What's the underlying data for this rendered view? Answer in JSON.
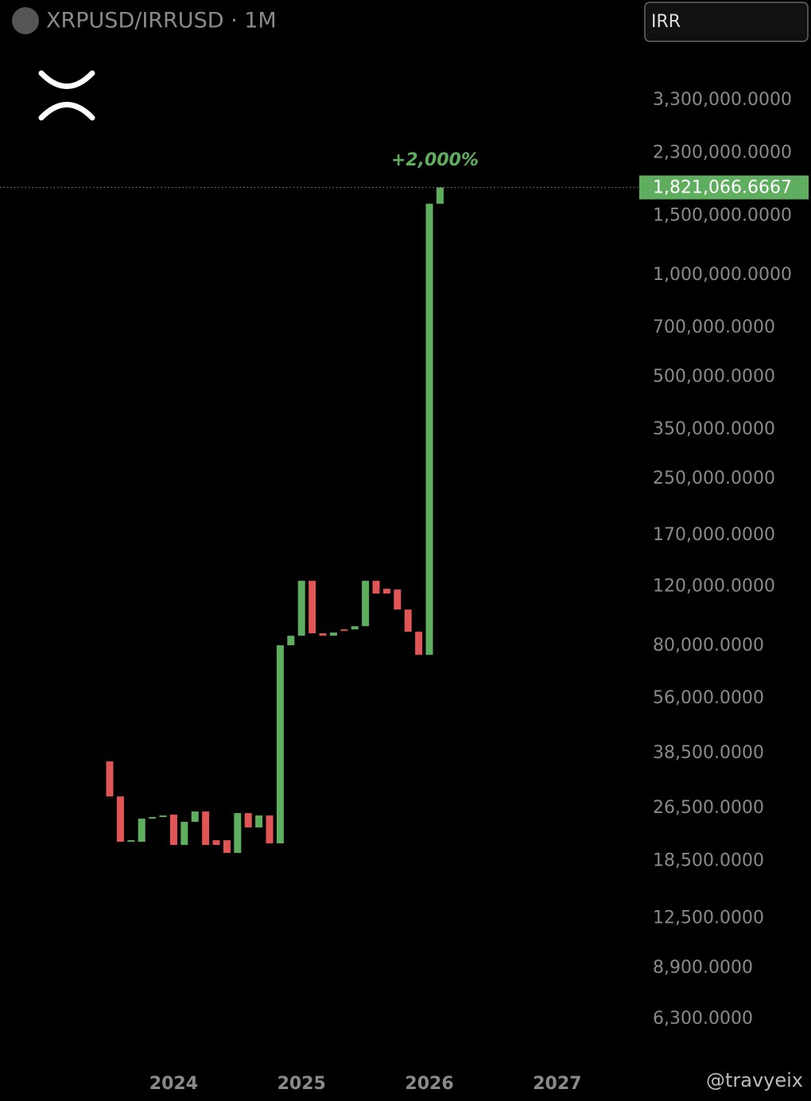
{
  "chart_data": {
    "type": "candlestick",
    "title": "XRPUSD/IRRUSD · 1M",
    "currency": "IRR",
    "annotation": "+2,000%",
    "watermark": "@travyeix",
    "log_scale": true,
    "grid": false,
    "up_color": "#5fae5f",
    "down_color": "#e05555",
    "last_value": 1821066.6667,
    "last_value_label": "1,821,066.6667",
    "open": [
      36450,
      28720,
      21080,
      21080,
      24680,
      24950,
      25360,
      20630,
      24150,
      25910,
      21310,
      21310,
      19540,
      25630,
      23240,
      25220,
      20850,
      80430,
      85830,
      124800,
      87250,
      85830,
      89630,
      89630,
      91600,
      124800,
      118200,
      117600,
      102600,
      88200,
      75350,
      1629000
    ],
    "close": [
      28720,
      21080,
      21310,
      24680,
      24950,
      25220,
      20630,
      24150,
      25910,
      20630,
      20630,
      19540,
      25630,
      23240,
      25220,
      20850,
      80430,
      85830,
      124800,
      87250,
      85830,
      87710,
      89150,
      91600,
      124800,
      114400,
      114400,
      102600,
      88200,
      75350,
      1629000,
      1821066.6667
    ],
    "xlim": [
      -10.3,
      49.4
    ],
    "xticks": [
      {
        "value": 6,
        "label": "2024"
      },
      {
        "value": 18,
        "label": "2025"
      },
      {
        "value": 30,
        "label": "2026"
      },
      {
        "value": 42,
        "label": "2027"
      }
    ],
    "ylim": [
      4830,
      4980000
    ],
    "yticks": [
      {
        "value": 6300,
        "label": "6,300.0000"
      },
      {
        "value": 8900,
        "label": "8,900.0000"
      },
      {
        "value": 12500,
        "label": "12,500.0000"
      },
      {
        "value": 18500,
        "label": "18,500.0000"
      },
      {
        "value": 26500,
        "label": "26,500.0000"
      },
      {
        "value": 38500,
        "label": "38,500.0000"
      },
      {
        "value": 56000,
        "label": "56,000.0000"
      },
      {
        "value": 80000,
        "label": "80,000.0000"
      },
      {
        "value": 120000,
        "label": "120,000.0000"
      },
      {
        "value": 170000,
        "label": "170,000.0000"
      },
      {
        "value": 250000,
        "label": "250,000.0000"
      },
      {
        "value": 350000,
        "label": "350,000.0000"
      },
      {
        "value": 500000,
        "label": "500,000.0000"
      },
      {
        "value": 700000,
        "label": "700,000.0000"
      },
      {
        "value": 1000000,
        "label": "1,000,000.0000"
      },
      {
        "value": 1500000,
        "label": "1,500,000.0000"
      },
      {
        "value": 2300000,
        "label": "2,300,000.0000"
      },
      {
        "value": 3300000,
        "label": "3,300,000.0000"
      }
    ]
  }
}
